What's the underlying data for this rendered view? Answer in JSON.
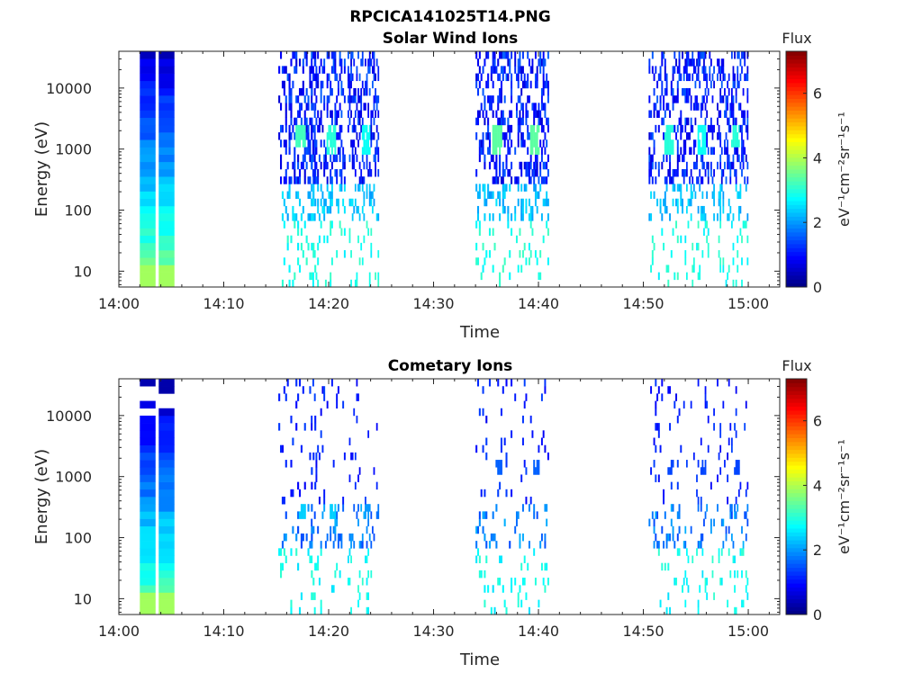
{
  "figure": {
    "title": "RPCICA141025T14.PNG"
  },
  "chart_data": [
    {
      "type": "heatmap",
      "title": "Solar Wind Ions",
      "xlabel": "Time",
      "ylabel": "Energy (eV)",
      "y_scale": "log",
      "xlim": [
        "14:00",
        "15:03"
      ],
      "ylim": [
        5.5,
        40000
      ],
      "x_ticks": [
        "14:00",
        "14:10",
        "14:20",
        "14:30",
        "14:40",
        "14:50",
        "15:00"
      ],
      "y_ticks": [
        10,
        100,
        1000,
        10000
      ],
      "y_tick_labels": [
        "10",
        "100",
        "1000",
        "10000"
      ],
      "colorbar": {
        "label": "eV⁻¹cm⁻²sr⁻¹s⁻¹",
        "title": "Flux",
        "min": 0,
        "max": 7.3,
        "ticks": [
          0,
          2,
          4,
          6
        ],
        "colormap": "jet"
      },
      "scan_blocks": [
        {
          "start": "14:02",
          "end": "14:03.5",
          "pattern": "continuous"
        },
        {
          "start": "14:03.8",
          "end": "14:05.3",
          "pattern": "continuous"
        },
        {
          "start": "14:15.2",
          "end": "14:18.8",
          "pattern": "sparse",
          "peak_energy": 1500,
          "peak_flux": 3.2
        },
        {
          "start": "14:18.3",
          "end": "14:21.6",
          "pattern": "sparse",
          "peak_energy": 1400,
          "peak_flux": 3.0
        },
        {
          "start": "14:21.8",
          "end": "14:24.8",
          "pattern": "sparse",
          "peak_energy": 1400,
          "peak_flux": 2.8
        },
        {
          "start": "14:34",
          "end": "14:37.5",
          "pattern": "sparse",
          "peak_energy": 1400,
          "peak_flux": 3.4
        },
        {
          "start": "14:37.7",
          "end": "14:41",
          "pattern": "sparse",
          "peak_energy": 1400,
          "peak_flux": 3.4
        },
        {
          "start": "14:50.5",
          "end": "14:53.8",
          "pattern": "sparse",
          "peak_energy": 1400,
          "peak_flux": 3.0
        },
        {
          "start": "14:53.8",
          "end": "14:56.8",
          "pattern": "sparse",
          "peak_energy": 1400,
          "peak_flux": 2.8
        },
        {
          "start": "14:57",
          "end": "15:00",
          "pattern": "sparse",
          "peak_energy": 1500,
          "peak_flux": 3.0
        }
      ]
    },
    {
      "type": "heatmap",
      "title": "Cometary Ions",
      "xlabel": "Time",
      "ylabel": "Energy (eV)",
      "y_scale": "log",
      "xlim": [
        "14:00",
        "15:03"
      ],
      "ylim": [
        5.5,
        40000
      ],
      "x_ticks": [
        "14:00",
        "14:10",
        "14:20",
        "14:30",
        "14:40",
        "14:50",
        "15:00"
      ],
      "y_ticks": [
        10,
        100,
        1000,
        10000
      ],
      "y_tick_labels": [
        "10",
        "100",
        "1000",
        "10000"
      ],
      "colorbar": {
        "label": "eV⁻¹cm⁻²sr⁻¹s⁻¹",
        "title": "Flux",
        "min": 0,
        "max": 7.3,
        "ticks": [
          0,
          2,
          4,
          6
        ],
        "colormap": "jet"
      },
      "scan_blocks": [
        {
          "start": "14:02",
          "end": "14:03.5",
          "pattern": "continuous"
        },
        {
          "start": "14:03.8",
          "end": "14:05.3",
          "pattern": "continuous"
        },
        {
          "start": "14:15.2",
          "end": "14:18.8",
          "pattern": "sparse-low",
          "peak_energy": 250,
          "peak_flux": 2.4
        },
        {
          "start": "14:18.3",
          "end": "14:21.6",
          "pattern": "sparse-low",
          "peak_energy": 250,
          "peak_flux": 2.4
        },
        {
          "start": "14:21.8",
          "end": "14:24.8",
          "pattern": "sparse-low",
          "peak_energy": 250,
          "peak_flux": 2.0
        },
        {
          "start": "14:34",
          "end": "14:37.5",
          "pattern": "sparse-low",
          "peak_energy": 1600,
          "peak_flux": 1.6
        },
        {
          "start": "14:37.7",
          "end": "14:41",
          "pattern": "sparse-low",
          "peak_energy": 1500,
          "peak_flux": 1.6
        },
        {
          "start": "14:50.5",
          "end": "14:53.8",
          "pattern": "sparse-low",
          "peak_energy": 1600,
          "peak_flux": 1.4
        },
        {
          "start": "14:53.8",
          "end": "14:56.8",
          "pattern": "sparse-low",
          "peak_energy": 1600,
          "peak_flux": 1.4
        },
        {
          "start": "14:57",
          "end": "15:00",
          "pattern": "sparse-low",
          "peak_energy": 1600,
          "peak_flux": 1.4
        }
      ]
    }
  ]
}
